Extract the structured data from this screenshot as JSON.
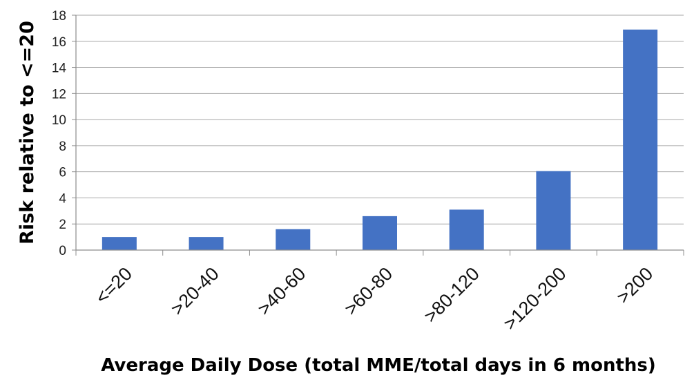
{
  "chart_data": {
    "type": "bar",
    "title": "",
    "xlabel": "Average Daily Dose (total MME/total days in 6 months)",
    "ylabel": "Risk relative to <=20",
    "categories": [
      "<=20",
      ">20-40",
      ">40-60",
      ">60-80",
      ">80-120",
      ">120-200",
      ">200"
    ],
    "values": [
      1,
      1,
      1.6,
      2.6,
      3.1,
      6.05,
      16.9
    ],
    "ylim": [
      0,
      18
    ],
    "yticks": [
      "0",
      "2",
      "4",
      "6",
      "8",
      "10",
      "12",
      "14",
      "16",
      "18"
    ],
    "grid": true,
    "legend": "none",
    "colors": {
      "bar": "#4472C4",
      "grid": "#a6a6a6",
      "axis": "#8c8c8c"
    }
  }
}
